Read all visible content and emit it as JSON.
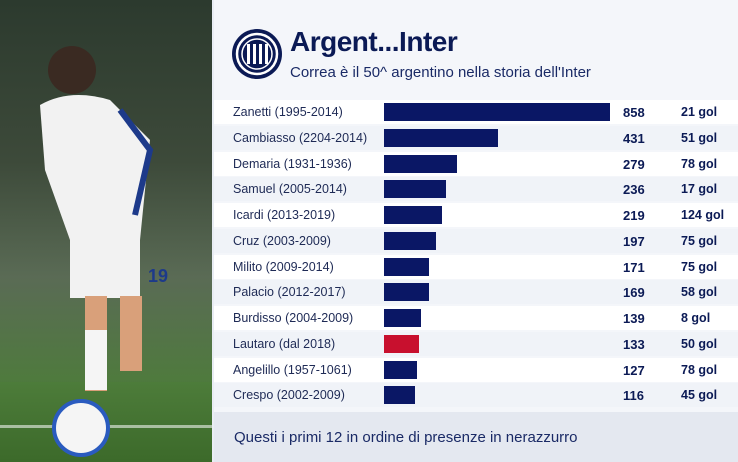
{
  "header": {
    "title": "Argent...Inter",
    "subtitle": "Correa è il 50^ argentino nella storia dell'Inter"
  },
  "footer": {
    "note": "Questi i primi 12 in ordine di presenze in nerazzurro"
  },
  "colors": {
    "bar": "#0a1765",
    "highlight": "#c8102e",
    "text": "#0b1a55"
  },
  "player_photo": {
    "shirt_number": "19"
  },
  "chart_data": {
    "type": "bar",
    "orientation": "horizontal",
    "categories": [
      "Zanetti (1995-2014)",
      "Cambiasso (2204-2014)",
      "Demaria (1931-1936)",
      "Samuel (2005-2014)",
      "Icardi (2013-2019)",
      "Cruz (2003-2009)",
      "Milito (2009-2014)",
      "Palacio (2012-2017)",
      "Burdisso (2004-2009)",
      "Lautaro (dal 2018)",
      "Angelillo (1957-1061)",
      "Crespo (2002-2009)"
    ],
    "values": [
      858,
      431,
      279,
      236,
      219,
      197,
      171,
      169,
      139,
      133,
      127,
      116
    ],
    "goals": [
      "21 gol",
      "51 gol",
      "78 gol",
      "17 gol",
      "124 gol",
      "75 gol",
      "75 gol",
      "58 gol",
      "8 gol",
      "50 gol",
      "78 gol",
      "45 gol"
    ],
    "highlight_index": 9,
    "xlim": [
      0,
      858
    ]
  }
}
